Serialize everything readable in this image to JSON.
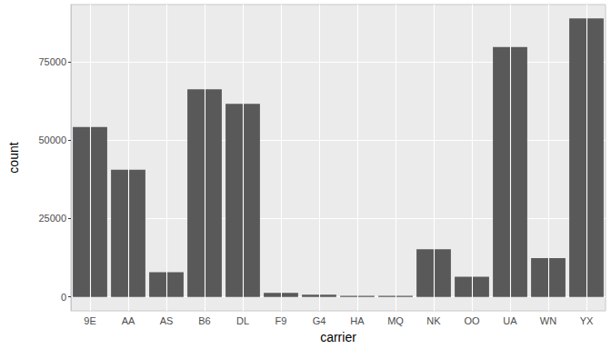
{
  "chart_data": {
    "type": "bar",
    "x_label": "carrier",
    "y_label": "count",
    "categories": [
      "9E",
      "AA",
      "AS",
      "B6",
      "DL",
      "F9",
      "G4",
      "HA",
      "MQ",
      "NK",
      "OO",
      "UA",
      "WN",
      "YX"
    ],
    "values": [
      54141,
      40525,
      7843,
      66169,
      61562,
      1286,
      671,
      366,
      357,
      15189,
      6432,
      79641,
      12385,
      88785
    ],
    "color": "#595959",
    "ylim": [
      -4439,
      93224
    ],
    "yticks": [
      0,
      25000,
      50000,
      75000
    ],
    "grid": true
  }
}
